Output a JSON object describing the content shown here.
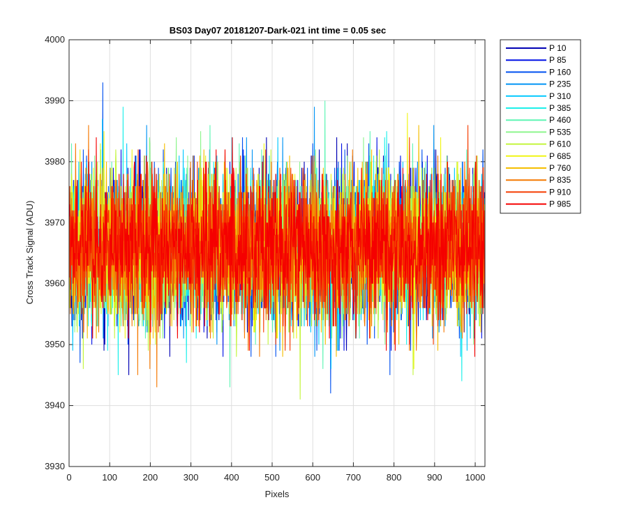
{
  "chart_data": {
    "type": "line",
    "title": "BS03 Day07 20181207-Dark-021 int time = 0.05 sec",
    "xlabel": "Pixels",
    "ylabel": "Cross Track Signal (ADU)",
    "xlim": [
      0,
      1024
    ],
    "ylim": [
      3930,
      4000
    ],
    "xticks": [
      0,
      100,
      200,
      300,
      400,
      500,
      600,
      700,
      800,
      900,
      1000
    ],
    "yticks": [
      3930,
      3940,
      3950,
      3960,
      3970,
      3980,
      3990,
      4000
    ],
    "grid": true,
    "legend_position": "outside-right",
    "n_points": 1024,
    "noise_center": 3966,
    "noise_sigma": 6,
    "series": [
      {
        "name": "P 10",
        "color": "#0000b4"
      },
      {
        "name": "P 85",
        "color": "#0010e6"
      },
      {
        "name": "P 160",
        "color": "#0050f0"
      },
      {
        "name": "P 235",
        "color": "#0094f5"
      },
      {
        "name": "P 310",
        "color": "#00c8ff"
      },
      {
        "name": "P 385",
        "color": "#1cf0ea"
      },
      {
        "name": "P 460",
        "color": "#5ef5b4"
      },
      {
        "name": "P 535",
        "color": "#8cf58c"
      },
      {
        "name": "P 610",
        "color": "#c3f53c"
      },
      {
        "name": "P 685",
        "color": "#f0f514"
      },
      {
        "name": "P 760",
        "color": "#f5be00"
      },
      {
        "name": "P 835",
        "color": "#f57800"
      },
      {
        "name": "P 910",
        "color": "#f53c00"
      },
      {
        "name": "P 985",
        "color": "#f50000"
      }
    ]
  }
}
